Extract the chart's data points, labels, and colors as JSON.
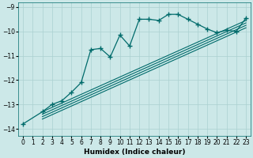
{
  "xlabel": "Humidex (Indice chaleur)",
  "bg_color": "#cce8e8",
  "line_color": "#006b6b",
  "grid_color": "#aad0d0",
  "xlim": [
    -0.5,
    23.5
  ],
  "ylim": [
    -14.3,
    -8.8
  ],
  "yticks": [
    -14,
    -13,
    -12,
    -11,
    -10,
    -9
  ],
  "xticks": [
    0,
    1,
    2,
    3,
    4,
    5,
    6,
    7,
    8,
    9,
    10,
    11,
    12,
    13,
    14,
    15,
    16,
    17,
    18,
    19,
    20,
    21,
    22,
    23
  ],
  "main_x": [
    0,
    2,
    3,
    4,
    5,
    6,
    7,
    8,
    9,
    10,
    11,
    12,
    13,
    14,
    15,
    16,
    17,
    18,
    19,
    20,
    21,
    22,
    23
  ],
  "main_y": [
    -13.8,
    -13.3,
    -13.0,
    -12.85,
    -12.5,
    -12.1,
    -10.75,
    -10.7,
    -11.05,
    -10.15,
    -10.6,
    -9.5,
    -9.5,
    -9.55,
    -9.3,
    -9.3,
    -9.5,
    -9.7,
    -9.9,
    -10.05,
    -9.95,
    -10.0,
    -9.45
  ],
  "trend_lines": [
    {
      "x": [
        2,
        23
      ],
      "y": [
        -13.3,
        -9.55
      ]
    },
    {
      "x": [
        2,
        23
      ],
      "y": [
        -13.4,
        -9.65
      ]
    },
    {
      "x": [
        2,
        23
      ],
      "y": [
        -13.5,
        -9.75
      ]
    },
    {
      "x": [
        2,
        23
      ],
      "y": [
        -13.6,
        -9.85
      ]
    }
  ]
}
